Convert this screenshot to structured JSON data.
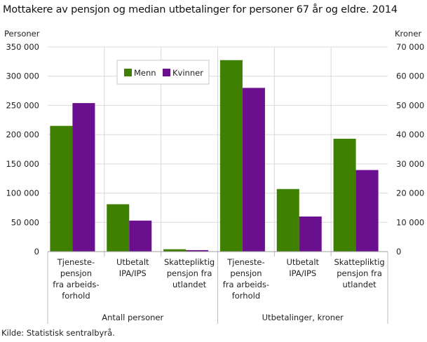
{
  "title": "Mottakere av pensjon og median utbetalinger for personer 67 år og eldre. 2014",
  "source": "Kilde: Statistisk sentralbyrå.",
  "colors": {
    "Menn": "#3f8000",
    "Kvinner": "#6a0f8e",
    "grid": "#d9d9d9"
  },
  "chart_data": {
    "type": "bar",
    "title": "Mottakere av pensjon og median utbetalinger for personer 67 år og eldre. 2014",
    "ylabel_left": "Personer",
    "ylabel_right": "Kroner",
    "ylim_left": [
      0,
      350000
    ],
    "ylim_right": [
      0,
      70000
    ],
    "yticks_left": [
      "0",
      "50 000",
      "100 000",
      "150 000",
      "200 000",
      "250 000",
      "300 000",
      "350 000"
    ],
    "yticks_right": [
      "0",
      "10 000",
      "20 000",
      "30 000",
      "40 000",
      "50 000",
      "60 000",
      "70 000"
    ],
    "legend": {
      "placement": "top-left",
      "entries": [
        "Menn",
        "Kvinner"
      ]
    },
    "groups": [
      {
        "label": "Antall personer",
        "axis": "left",
        "categories": [
          [
            "Tjeneste-",
            "pensjon",
            "fra arbeids-",
            "forhold"
          ],
          [
            "Utbetalt",
            "IPA/IPS"
          ],
          [
            "Skattepliktig",
            "pensjon fra",
            "utlandet"
          ]
        ],
        "series": [
          {
            "name": "Menn",
            "values": [
              215000,
              81000,
              4000
            ]
          },
          {
            "name": "Kvinner",
            "values": [
              254000,
              53000,
              2500
            ]
          }
        ]
      },
      {
        "label": "Utbetalinger, kroner",
        "axis": "right",
        "categories": [
          [
            "Tjeneste-",
            "pensjon",
            "fra arbeids-",
            "forhold"
          ],
          [
            "Utbetalt",
            "IPA/IPS"
          ],
          [
            "Skattepliktig",
            "pensjon fra",
            "utlandet"
          ]
        ],
        "series": [
          {
            "name": "Menn",
            "values": [
              65500,
              21400,
              38600
            ]
          },
          {
            "name": "Kvinner",
            "values": [
              56000,
              12000,
              27900
            ]
          }
        ]
      }
    ],
    "grid": true
  }
}
